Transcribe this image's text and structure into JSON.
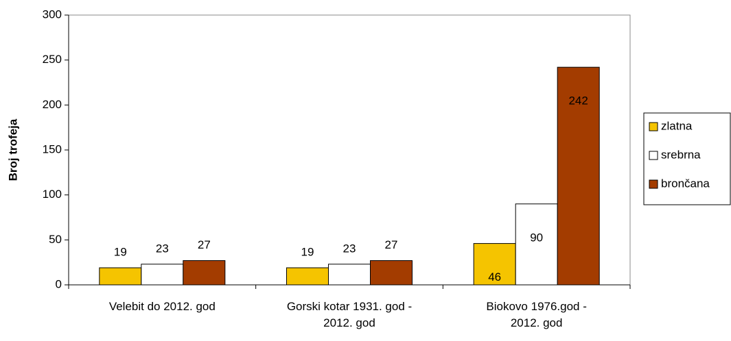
{
  "chart_data": {
    "type": "bar",
    "y_label": "Broj trofeja",
    "categories": [
      "Velebit do 2012. god",
      "Gorski kotar 1931. god -\n2012. god",
      "Biokovo 1976.god -\n2012. god"
    ],
    "series": [
      {
        "name": "zlatna",
        "color": "#f5c400",
        "values": [
          19,
          19,
          46
        ]
      },
      {
        "name": "srebrna",
        "color": "#ffffff",
        "values": [
          23,
          23,
          90
        ]
      },
      {
        "name": "brončana",
        "color": "#a33c00",
        "values": [
          27,
          27,
          242
        ]
      }
    ],
    "ylim": [
      0,
      300
    ],
    "yticks": [
      0,
      50,
      100,
      150,
      200,
      250,
      300
    ],
    "legend": "right"
  }
}
